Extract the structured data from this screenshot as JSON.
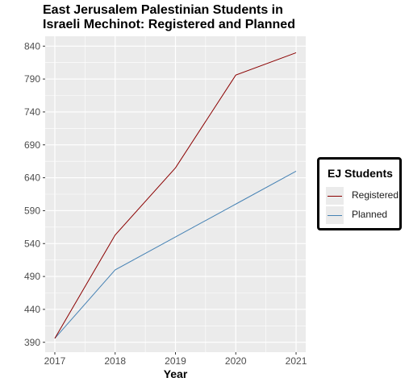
{
  "chart_data": {
    "type": "line",
    "title": [
      "East Jerusalem Palestinian Students in",
      "Israeli Mechinot: Registered and Planned"
    ],
    "xlabel": "Year",
    "ylabel": "",
    "x": [
      2017,
      2018,
      2019,
      2020,
      2021
    ],
    "y_ticks": [
      390,
      440,
      490,
      540,
      590,
      640,
      690,
      740,
      790,
      840
    ],
    "ylim": [
      375,
      855
    ],
    "xlim": [
      2016.84,
      2021.16
    ],
    "grid": true,
    "legend": {
      "title": "EJ Students",
      "placement": "right"
    },
    "series": [
      {
        "name": "Registered",
        "color": "#8b0000",
        "values": [
          396,
          553,
          655,
          796,
          830
        ]
      },
      {
        "name": "Planned",
        "color": "#4682b4",
        "values": [
          396,
          500,
          550,
          600,
          650
        ]
      }
    ],
    "panel_background": "#ebebeb"
  }
}
